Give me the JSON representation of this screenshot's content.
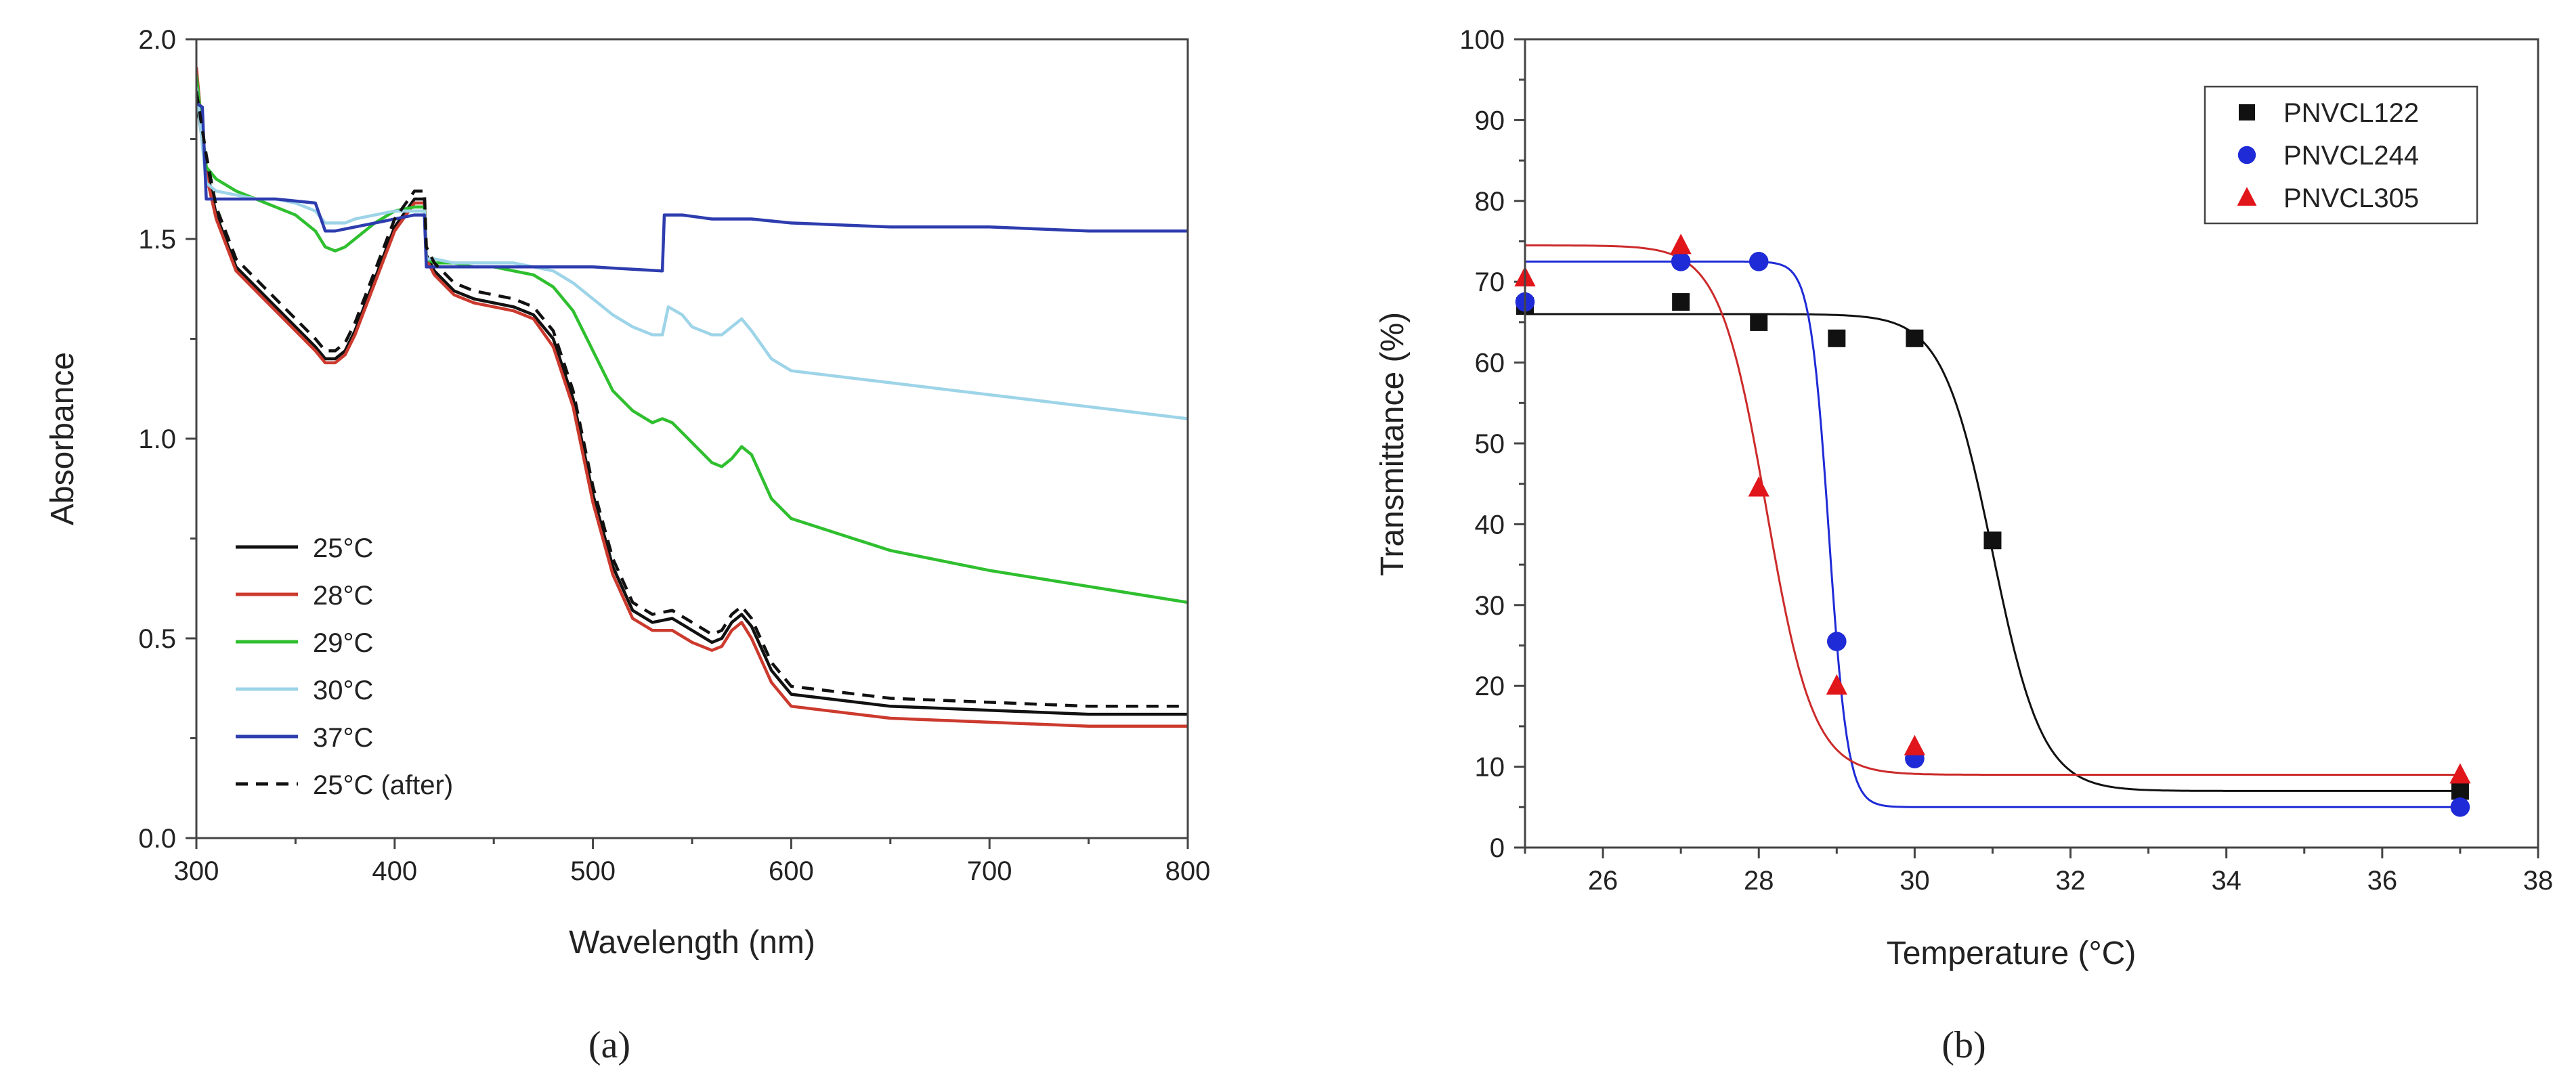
{
  "figure": {
    "panel_a_label": "(a)",
    "panel_b_label": "(b)"
  },
  "chart_data": [
    {
      "type": "line",
      "title": "",
      "xlabel": "Wavelength (nm)",
      "ylabel": "Absorbance",
      "xlim": [
        300,
        800
      ],
      "ylim": [
        0.0,
        2.0
      ],
      "xticks": [
        300,
        400,
        500,
        600,
        700,
        800
      ],
      "yticks": [
        0.0,
        0.5,
        1.0,
        1.5,
        2.0
      ],
      "xtick_labels": [
        "300",
        "400",
        "500",
        "600",
        "700",
        "800"
      ],
      "ytick_labels": [
        "0.0",
        "0.5",
        "1.0",
        "1.5",
        "2.0"
      ],
      "legend_position": "bottom-left",
      "series": [
        {
          "name": "25°C",
          "color": "#111111",
          "dash": "solid",
          "x": [
            300,
            305,
            310,
            320,
            330,
            340,
            350,
            360,
            365,
            370,
            375,
            380,
            390,
            400,
            410,
            415,
            416,
            420,
            430,
            440,
            450,
            460,
            470,
            480,
            490,
            500,
            510,
            520,
            530,
            540,
            550,
            560,
            565,
            570,
            575,
            580,
            590,
            600,
            650,
            700,
            750,
            800
          ],
          "y": [
            1.85,
            1.68,
            1.56,
            1.43,
            1.38,
            1.33,
            1.28,
            1.23,
            1.2,
            1.2,
            1.22,
            1.27,
            1.4,
            1.53,
            1.6,
            1.6,
            1.46,
            1.42,
            1.37,
            1.35,
            1.34,
            1.33,
            1.31,
            1.25,
            1.1,
            0.86,
            0.68,
            0.57,
            0.54,
            0.55,
            0.52,
            0.49,
            0.5,
            0.54,
            0.56,
            0.53,
            0.42,
            0.36,
            0.33,
            0.32,
            0.31,
            0.31
          ]
        },
        {
          "name": "28°C",
          "color": "#cc3a2e",
          "dash": "solid",
          "x": [
            300,
            305,
            310,
            320,
            330,
            340,
            350,
            360,
            365,
            370,
            375,
            380,
            390,
            400,
            410,
            415,
            416,
            420,
            430,
            440,
            450,
            460,
            470,
            480,
            490,
            500,
            510,
            520,
            530,
            540,
            550,
            560,
            565,
            570,
            575,
            580,
            590,
            600,
            650,
            700,
            750,
            800
          ],
          "y": [
            1.93,
            1.66,
            1.55,
            1.42,
            1.37,
            1.32,
            1.27,
            1.22,
            1.19,
            1.19,
            1.21,
            1.26,
            1.39,
            1.52,
            1.59,
            1.59,
            1.45,
            1.41,
            1.36,
            1.34,
            1.33,
            1.32,
            1.3,
            1.23,
            1.08,
            0.84,
            0.66,
            0.55,
            0.52,
            0.52,
            0.49,
            0.47,
            0.48,
            0.52,
            0.54,
            0.5,
            0.39,
            0.33,
            0.3,
            0.29,
            0.28,
            0.28
          ]
        },
        {
          "name": "29°C",
          "color": "#2fbf2f",
          "dash": "solid",
          "x": [
            300,
            305,
            310,
            320,
            330,
            340,
            350,
            360,
            365,
            370,
            375,
            380,
            390,
            400,
            410,
            415,
            416,
            420,
            430,
            440,
            450,
            460,
            470,
            480,
            490,
            500,
            510,
            520,
            530,
            535,
            540,
            550,
            560,
            565,
            570,
            575,
            580,
            590,
            600,
            650,
            700,
            750,
            800
          ],
          "y": [
            1.91,
            1.68,
            1.65,
            1.62,
            1.6,
            1.58,
            1.56,
            1.52,
            1.48,
            1.47,
            1.48,
            1.5,
            1.54,
            1.57,
            1.58,
            1.58,
            1.45,
            1.44,
            1.44,
            1.43,
            1.43,
            1.42,
            1.41,
            1.38,
            1.32,
            1.22,
            1.12,
            1.07,
            1.04,
            1.05,
            1.04,
            0.99,
            0.94,
            0.93,
            0.95,
            0.98,
            0.96,
            0.85,
            0.8,
            0.72,
            0.67,
            0.63,
            0.59
          ]
        },
        {
          "name": "30°C",
          "color": "#9dd4e8",
          "dash": "solid",
          "x": [
            300,
            305,
            310,
            320,
            330,
            340,
            350,
            360,
            365,
            370,
            375,
            380,
            390,
            400,
            410,
            415,
            416,
            420,
            430,
            440,
            450,
            460,
            470,
            480,
            490,
            500,
            510,
            520,
            530,
            535,
            538,
            545,
            550,
            560,
            565,
            570,
            575,
            580,
            590,
            600,
            650,
            700,
            750,
            800
          ],
          "y": [
            1.88,
            1.64,
            1.62,
            1.61,
            1.6,
            1.6,
            1.59,
            1.57,
            1.54,
            1.54,
            1.54,
            1.55,
            1.56,
            1.57,
            1.57,
            1.57,
            1.45,
            1.45,
            1.44,
            1.44,
            1.44,
            1.44,
            1.43,
            1.42,
            1.39,
            1.35,
            1.31,
            1.28,
            1.26,
            1.26,
            1.33,
            1.31,
            1.28,
            1.26,
            1.26,
            1.28,
            1.3,
            1.27,
            1.2,
            1.17,
            1.14,
            1.11,
            1.08,
            1.05
          ]
        },
        {
          "name": "37°C",
          "color": "#2d3cae",
          "dash": "solid",
          "x": [
            300,
            303,
            305,
            310,
            320,
            340,
            360,
            365,
            370,
            380,
            390,
            400,
            410,
            415,
            416,
            430,
            460,
            500,
            535,
            536,
            545,
            560,
            580,
            600,
            650,
            700,
            750,
            800
          ],
          "y": [
            1.84,
            1.83,
            1.6,
            1.6,
            1.6,
            1.6,
            1.59,
            1.52,
            1.52,
            1.53,
            1.54,
            1.55,
            1.56,
            1.56,
            1.43,
            1.43,
            1.43,
            1.43,
            1.42,
            1.56,
            1.56,
            1.55,
            1.55,
            1.54,
            1.53,
            1.53,
            1.52,
            1.52
          ]
        },
        {
          "name": "25°C (after)",
          "color": "#111111",
          "dash": "dashed",
          "x": [
            300,
            305,
            310,
            320,
            330,
            340,
            350,
            360,
            365,
            370,
            375,
            380,
            390,
            400,
            410,
            415,
            416,
            420,
            430,
            440,
            450,
            460,
            470,
            480,
            490,
            500,
            510,
            520,
            530,
            540,
            550,
            560,
            565,
            570,
            575,
            580,
            590,
            600,
            650,
            700,
            750,
            800
          ],
          "y": [
            1.87,
            1.71,
            1.58,
            1.45,
            1.4,
            1.35,
            1.3,
            1.25,
            1.22,
            1.22,
            1.24,
            1.29,
            1.42,
            1.55,
            1.62,
            1.62,
            1.48,
            1.44,
            1.39,
            1.37,
            1.36,
            1.35,
            1.33,
            1.27,
            1.12,
            0.88,
            0.7,
            0.59,
            0.56,
            0.57,
            0.54,
            0.51,
            0.52,
            0.56,
            0.58,
            0.55,
            0.44,
            0.38,
            0.35,
            0.34,
            0.33,
            0.33
          ]
        }
      ]
    },
    {
      "type": "scatter",
      "title": "",
      "xlabel": "Temperature (°C)",
      "ylabel": "Transmittance (%)",
      "xlim": [
        25,
        38
      ],
      "ylim": [
        0,
        100
      ],
      "xticks": [
        26,
        28,
        30,
        32,
        34,
        36,
        38
      ],
      "yticks": [
        0,
        10,
        20,
        30,
        40,
        50,
        60,
        70,
        80,
        90,
        100
      ],
      "xtick_labels": [
        "26",
        "28",
        "30",
        "32",
        "34",
        "36",
        "38"
      ],
      "ytick_labels": [
        "0",
        "10",
        "20",
        "30",
        "40",
        "50",
        "60",
        "70",
        "80",
        "90",
        "100"
      ],
      "legend_position": "top-right",
      "series": [
        {
          "name": "PNVCL122",
          "color": "#111111",
          "marker": "square",
          "x": [
            25,
            27,
            28,
            29,
            30,
            31,
            37
          ],
          "y": [
            67,
            67.5,
            65,
            63,
            63,
            38,
            7
          ],
          "fit": {
            "top": 66,
            "bottom": 7,
            "x0": 31.0,
            "k": 0.32,
            "color": "#111111"
          }
        },
        {
          "name": "PNVCL244",
          "color": "#1f2bd6",
          "marker": "circle",
          "x": [
            25,
            27,
            28,
            29,
            30,
            37
          ],
          "y": [
            67.5,
            72.5,
            72.5,
            25.5,
            11,
            5
          ],
          "fit": {
            "top": 72.5,
            "bottom": 5,
            "x0": 28.9,
            "k": 0.12,
            "color": "#1f2bd6"
          }
        },
        {
          "name": "PNVCL305",
          "color": "#e0161b",
          "marker": "triangle",
          "x": [
            25,
            27,
            28,
            29,
            30,
            37
          ],
          "y": [
            70.5,
            74.5,
            44.5,
            20,
            12.5,
            9
          ],
          "fit": {
            "top": 74.5,
            "bottom": 9,
            "x0": 28.1,
            "k": 0.3,
            "color": "#cc2b2b"
          }
        }
      ]
    }
  ]
}
